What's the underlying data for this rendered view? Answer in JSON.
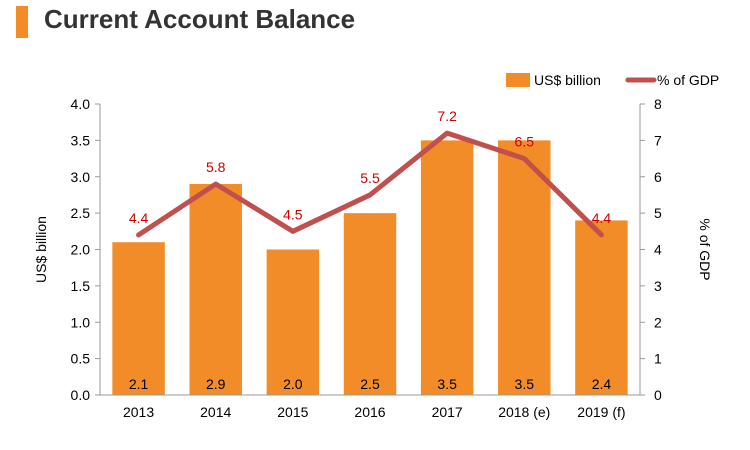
{
  "title": "Current Account Balance",
  "colors": {
    "bar": "#f28c28",
    "line": "#c0504d",
    "accent": "#f28c28",
    "label_red": "#cc0000",
    "axis_text": "#000000"
  },
  "chart_data": {
    "type": "bar",
    "title": "Current Account Balance",
    "categories": [
      "2013",
      "2014",
      "2015",
      "2016",
      "2017",
      "2018 (e)",
      "2019 (f)"
    ],
    "series": [
      {
        "name": "US$ billion",
        "type": "bar",
        "axis": "left",
        "values": [
          2.1,
          2.9,
          2.0,
          2.5,
          3.5,
          3.5,
          2.4
        ]
      },
      {
        "name": "% of GDP",
        "type": "line",
        "axis": "right",
        "values": [
          4.4,
          5.8,
          4.5,
          5.5,
          7.2,
          6.5,
          4.4
        ]
      }
    ],
    "bar_value_labels": [
      "2.1",
      "2.9",
      "2.0",
      "2.5",
      "3.5",
      "3.5",
      "2.4"
    ],
    "line_value_labels": [
      "4.4",
      "5.8",
      "4.5",
      "5.5",
      "7.2",
      "6.5",
      "4.4"
    ],
    "ylabel_left": "US$ billion",
    "ylabel_right": "% of GDP",
    "ylim_left": [
      0,
      4
    ],
    "ylim_right": [
      0,
      8
    ],
    "yticks_left": [
      "0.0",
      "0.5",
      "1.0",
      "1.5",
      "2.0",
      "2.5",
      "3.0",
      "3.5",
      "4.0"
    ],
    "yticks_right": [
      "0",
      "1",
      "2",
      "3",
      "4",
      "5",
      "6",
      "7",
      "8"
    ],
    "legend": {
      "position": "top-right",
      "entries": [
        "US$ billion",
        "% of GDP"
      ]
    },
    "grid": false
  }
}
